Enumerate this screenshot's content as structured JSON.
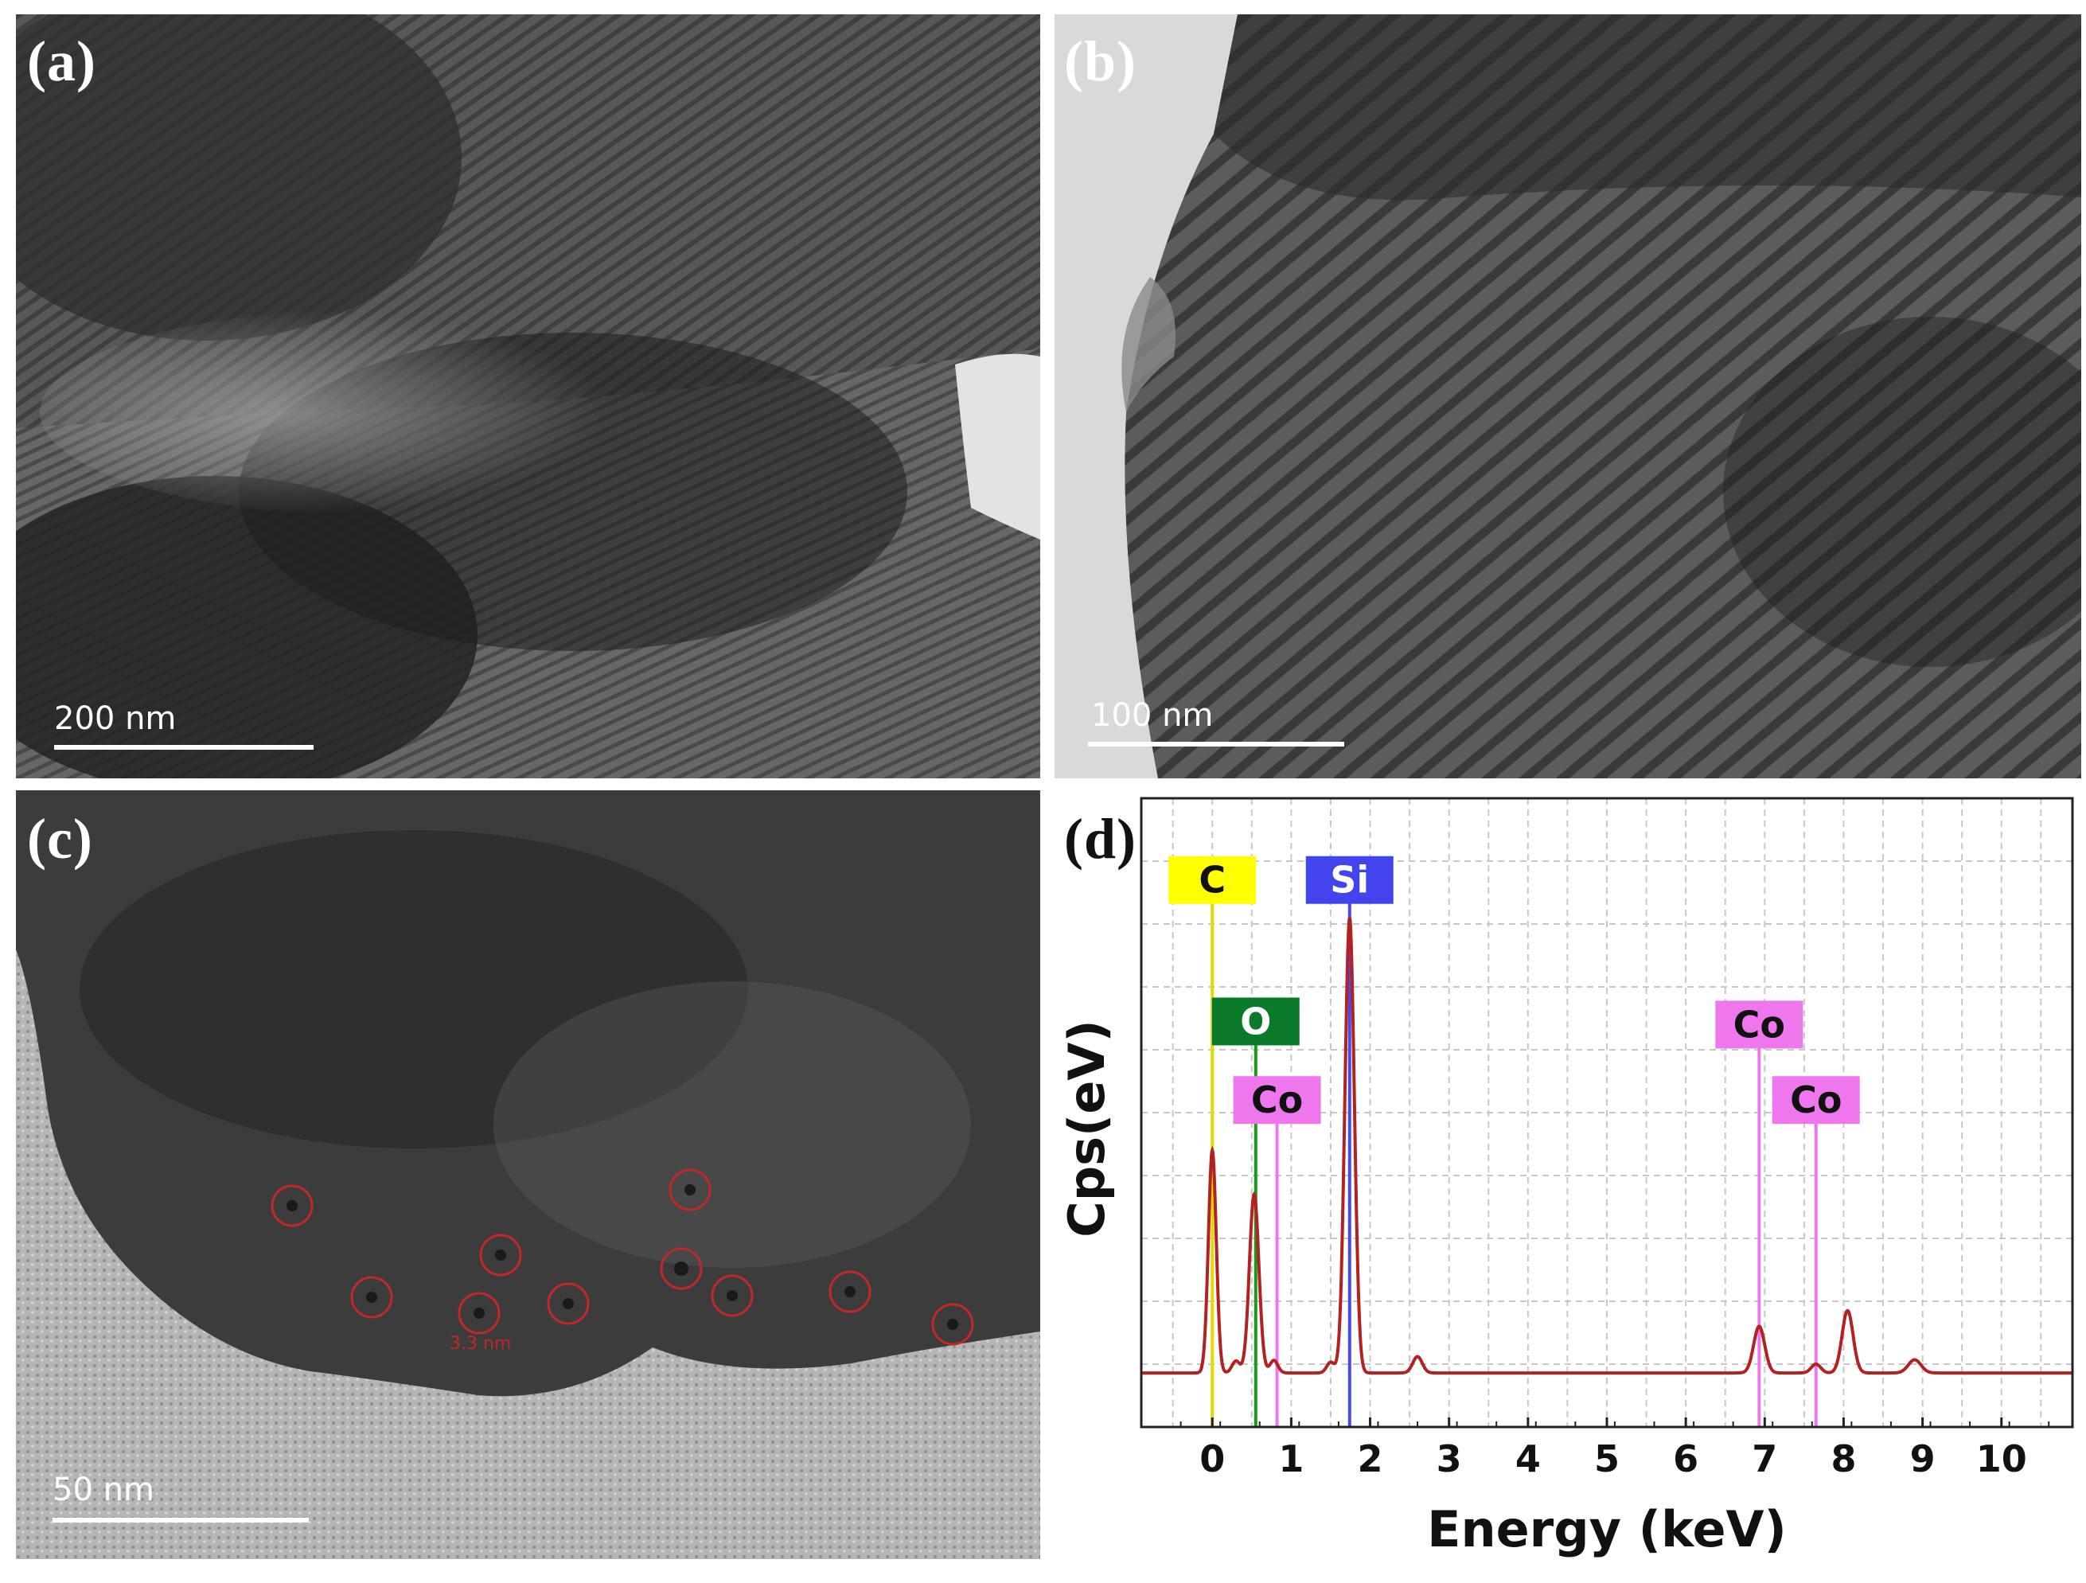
{
  "panels": {
    "a": {
      "label": "(a)",
      "scale": "200 nm"
    },
    "b": {
      "label": "(b)",
      "scale": "100 nm"
    },
    "c": {
      "label": "(c)",
      "scale": "50 nm",
      "annotation": "3.3 nm"
    },
    "d": {
      "label": "(d)"
    }
  },
  "chart_data": {
    "type": "line",
    "xlabel": "Energy (keV)",
    "ylabel": "Cps(eV)",
    "xlim": [
      -0.9,
      10.9
    ],
    "ylim": [
      0,
      100
    ],
    "x_ticks": [
      0,
      1,
      2,
      3,
      4,
      5,
      6,
      7,
      8,
      9,
      10
    ],
    "grid": true,
    "baseline": 8.6,
    "series": [
      {
        "color": "#b22222",
        "peaks": [
          {
            "x": 0.0,
            "y": 44,
            "width": 0.05
          },
          {
            "x": 0.3,
            "y": 10.5,
            "width": 0.05
          },
          {
            "x": 0.53,
            "y": 37,
            "width": 0.06
          },
          {
            "x": 0.78,
            "y": 10.6,
            "width": 0.05
          },
          {
            "x": 1.5,
            "y": 10.3,
            "width": 0.05
          },
          {
            "x": 1.74,
            "y": 81,
            "width": 0.06
          },
          {
            "x": 2.6,
            "y": 11.2,
            "width": 0.06
          },
          {
            "x": 6.93,
            "y": 16,
            "width": 0.07
          },
          {
            "x": 7.65,
            "y": 10,
            "width": 0.06
          },
          {
            "x": 8.05,
            "y": 18.5,
            "width": 0.07
          },
          {
            "x": 8.9,
            "y": 10.7,
            "width": 0.08
          }
        ]
      }
    ],
    "element_markers": [
      {
        "label": "C",
        "x": 0.0,
        "color": "#ffff00",
        "line_color": "#e6d800",
        "text_color": "#111111",
        "level": 87
      },
      {
        "label": "Si",
        "x": 1.74,
        "color": "#4444ee",
        "line_color": "#4a4ae0",
        "text_color": "#ffffff",
        "level": 87
      },
      {
        "label": "O",
        "x": 0.55,
        "color": "#0a7a2a",
        "line_color": "#1a9a1a",
        "text_color": "#ffffff",
        "level": 64.5
      },
      {
        "label": "Co",
        "x": 0.82,
        "color": "#ee77ee",
        "line_color": "#ee77ee",
        "text_color": "#111111",
        "level": 52
      },
      {
        "label": "Co",
        "x": 6.93,
        "color": "#ee77ee",
        "line_color": "#ee77ee",
        "text_color": "#111111",
        "level": 64
      },
      {
        "label": "Co",
        "x": 7.65,
        "color": "#ee77ee",
        "line_color": "#ee77ee",
        "text_color": "#111111",
        "level": 52
      }
    ]
  }
}
